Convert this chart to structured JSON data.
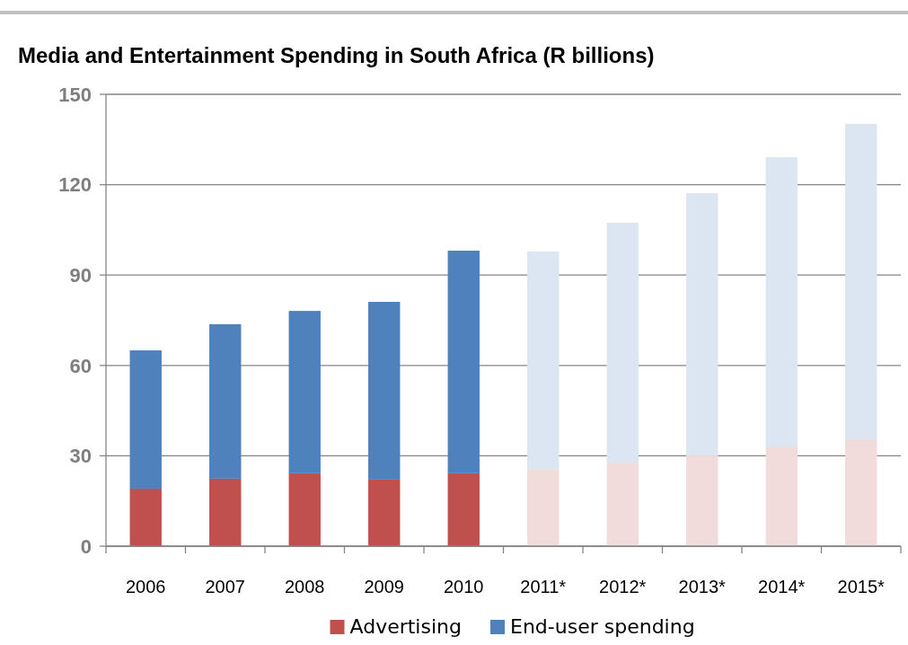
{
  "chart_data": {
    "type": "bar",
    "title": "Media and Entertainment Spending in South Africa (R billions)",
    "categories": [
      "2006",
      "2007",
      "2008",
      "2009",
      "2010",
      "2011*",
      "2012*",
      "2013*",
      "2014*",
      "2015*"
    ],
    "stacked": true,
    "ylim": [
      0,
      150
    ],
    "yticks": [
      0,
      30,
      60,
      90,
      120,
      150
    ],
    "grid": "y",
    "legend": "bottom",
    "series": [
      {
        "name": "Advertising",
        "color": "#c0504d",
        "colors": [
          "#c0504d",
          "#c0504d",
          "#c0504d",
          "#c0504d",
          "#c0504d",
          "#f2dcdb",
          "#f2dcdb",
          "#f2dcdb",
          "#f2dcdb",
          "#f2dcdb"
        ],
        "values": [
          19.1,
          22.4,
          24.2,
          22.1,
          24.2,
          25.4,
          27.7,
          30.1,
          33.1,
          35.5
        ]
      },
      {
        "name": "End-user spending",
        "color": "#4f81bd",
        "colors": [
          "#4f81bd",
          "#4f81bd",
          "#4f81bd",
          "#4f81bd",
          "#4f81bd",
          "#dce6f2",
          "#dce6f2",
          "#dce6f2",
          "#dce6f2",
          "#dce6f2"
        ],
        "values": [
          45.9,
          51.3,
          53.9,
          59.0,
          73.9,
          72.4,
          79.7,
          87.1,
          96.0,
          104.7
        ]
      }
    ]
  }
}
